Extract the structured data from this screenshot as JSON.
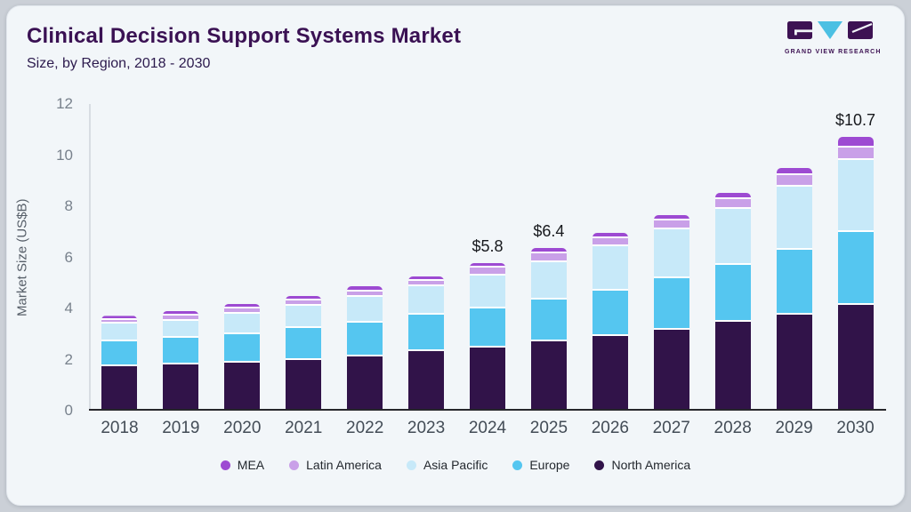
{
  "header": {
    "title": "Clinical Decision Support Systems Market",
    "subtitle": "Size, by Region, 2018 - 2030"
  },
  "logo": {
    "text": "GRAND VIEW RESEARCH"
  },
  "colors": {
    "brand_purple": "#3d1253",
    "logo_triangle": "#4cc0e3",
    "card_bg": "#f2f6f9",
    "outer_bg": "#cbd0d7"
  },
  "chart_data": {
    "type": "bar",
    "stacked": true,
    "title": "Clinical Decision Support Systems Market",
    "subtitle": "Size, by Region, 2018 - 2030",
    "xlabel": "",
    "ylabel": "Market Size (US$B)",
    "ylim": [
      0,
      12
    ],
    "yticks": [
      0,
      2,
      4,
      6,
      8,
      10,
      12
    ],
    "grid": false,
    "legend_position": "bottom",
    "categories": [
      "2018",
      "2019",
      "2020",
      "2021",
      "2022",
      "2023",
      "2024",
      "2025",
      "2026",
      "2027",
      "2028",
      "2029",
      "2030"
    ],
    "series": [
      {
        "name": "MEA",
        "color": "#9d4ad2",
        "values": [
          0.1,
          0.13,
          0.15,
          0.17,
          0.19,
          0.18,
          0.18,
          0.2,
          0.21,
          0.23,
          0.25,
          0.3,
          0.39
        ]
      },
      {
        "name": "Latin America",
        "color": "#c9a0e8",
        "values": [
          0.11,
          0.22,
          0.21,
          0.23,
          0.23,
          0.2,
          0.32,
          0.35,
          0.32,
          0.34,
          0.38,
          0.43,
          0.51
        ]
      },
      {
        "name": "Asia Pacific",
        "color": "#c7e9f9",
        "values": [
          0.7,
          0.67,
          0.81,
          0.87,
          1.01,
          1.14,
          1.28,
          1.45,
          1.71,
          1.91,
          2.18,
          2.47,
          2.82
        ]
      },
      {
        "name": "Europe",
        "color": "#55c6f0",
        "values": [
          0.95,
          1.05,
          1.11,
          1.22,
          1.3,
          1.41,
          1.53,
          1.65,
          1.8,
          2.03,
          2.25,
          2.54,
          2.83
        ]
      },
      {
        "name": "North America",
        "color": "#311349",
        "values": [
          1.75,
          1.8,
          1.88,
          2.0,
          2.13,
          2.33,
          2.48,
          2.7,
          2.91,
          3.16,
          3.47,
          3.77,
          4.15
        ]
      }
    ],
    "totals": [
      3.6,
      3.9,
      4.2,
      4.5,
      4.9,
      5.3,
      5.8,
      6.4,
      7.0,
      7.7,
      8.5,
      9.5,
      10.7
    ],
    "bar_labels": [
      "",
      "",
      "",
      "",
      "",
      "",
      "$5.8",
      "$6.4",
      "",
      "",
      "",
      "",
      "$10.7"
    ]
  }
}
